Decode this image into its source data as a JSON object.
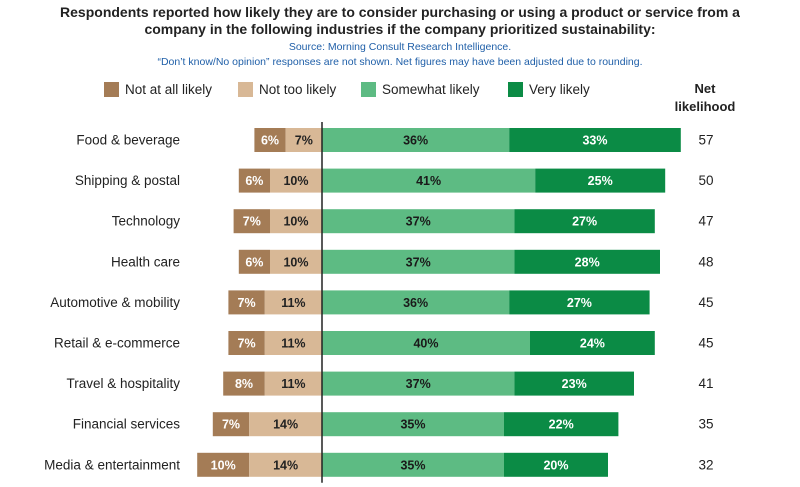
{
  "header": {
    "title_line1": "Respondents reported how likely they are to consider purchasing or using a product or service from a",
    "title_line2": "company in the following industries if the company prioritized sustainability:",
    "source": "Source: Morning Consult Research Intelligence.",
    "footnote": "“Don’t know/No opinion” responses are not shown. Net figures may have been adjusted due to rounding."
  },
  "net_header": [
    "Net",
    "likelihood"
  ],
  "colors": {
    "not_at_all": "#a47c56",
    "not_too": "#d8b896",
    "somewhat": "#5dbb83",
    "very": "#0b8b45",
    "axis": "#222222"
  },
  "chart_data": {
    "type": "bar",
    "orientation": "horizontal-diverging-stacked",
    "categories": [
      "Food & beverage",
      "Shipping & postal",
      "Technology",
      "Health care",
      "Automotive & mobility",
      "Retail & e-commerce",
      "Travel & hospitality",
      "Financial services",
      "Media & entertainment"
    ],
    "series": [
      {
        "name": "Not at all likely",
        "key": "not_at_all",
        "side": "negative",
        "values": [
          6,
          6,
          7,
          6,
          7,
          7,
          8,
          7,
          10
        ],
        "labels": [
          "6%",
          "6%",
          "7%",
          "6%",
          "7%",
          "7%",
          "8%",
          "7%",
          "10%"
        ]
      },
      {
        "name": "Not too likely",
        "key": "not_too",
        "side": "negative",
        "values": [
          7,
          10,
          10,
          10,
          11,
          11,
          11,
          14,
          14
        ],
        "labels": [
          "7%",
          "10%",
          "10%",
          "10%",
          "11%",
          "11%",
          "11%",
          "14%",
          "14%"
        ]
      },
      {
        "name": "Somewhat likely",
        "key": "somewhat",
        "side": "positive",
        "values": [
          36,
          41,
          37,
          37,
          36,
          40,
          37,
          35,
          35
        ],
        "labels": [
          "36%",
          "41%",
          "37%",
          "37%",
          "36%",
          "40%",
          "37%",
          "35%",
          "35%"
        ]
      },
      {
        "name": "Very likely",
        "key": "very",
        "side": "positive",
        "values": [
          33,
          25,
          27,
          28,
          27,
          24,
          23,
          22,
          20
        ],
        "labels": [
          "33%",
          "25%",
          "27%",
          "28%",
          "27%",
          "24%",
          "23%",
          "22%",
          "20%"
        ]
      }
    ],
    "net_likelihood": [
      "57",
      "50",
      "47",
      "48",
      "45",
      "45",
      "41",
      "35",
      "32"
    ],
    "units": "percent of respondents"
  }
}
